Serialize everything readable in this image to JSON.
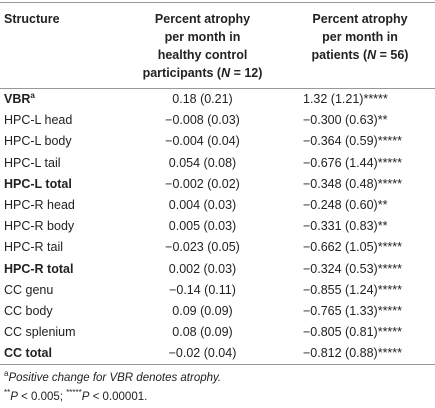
{
  "table": {
    "headers": [
      [
        [
          "Structure"
        ]
      ],
      [
        [
          "Percent atrophy"
        ],
        [
          "per month in"
        ],
        [
          "healthy control"
        ],
        [
          "participants (",
          {
            "text": "N",
            "style": "i"
          },
          " = 12)"
        ]
      ],
      [
        [
          "Percent atrophy"
        ],
        [
          "per month in"
        ],
        [
          "patients (",
          {
            "text": "N",
            "style": "i"
          },
          " = 56)"
        ]
      ]
    ],
    "rows": [
      {
        "cells": [
          [
            "VBR",
            {
              "text": "a",
              "style": "sup"
            }
          ],
          [
            "0.18 (0.21)"
          ],
          [
            "1.32 (1.21)*****"
          ]
        ],
        "bold": true
      },
      {
        "cells": [
          [
            "HPC-L head"
          ],
          [
            "−0.008 (0.03)"
          ],
          [
            "−0.300 (0.63)**"
          ]
        ]
      },
      {
        "cells": [
          [
            "HPC-L body"
          ],
          [
            "−0.004 (0.04)"
          ],
          [
            "−0.364 (0.59)*****"
          ]
        ]
      },
      {
        "cells": [
          [
            "HPC-L tail"
          ],
          [
            "0.054 (0.08)"
          ],
          [
            "−0.676 (1.44)*****"
          ]
        ]
      },
      {
        "cells": [
          [
            "HPC-L total"
          ],
          [
            "−0.002 (0.02)"
          ],
          [
            "−0.348 (0.48)*****"
          ]
        ],
        "bold": true
      },
      {
        "cells": [
          [
            "HPC-R head"
          ],
          [
            "0.004 (0.03)"
          ],
          [
            "−0.248 (0.60)**"
          ]
        ]
      },
      {
        "cells": [
          [
            "HPC-R body"
          ],
          [
            "0.005 (0.03)"
          ],
          [
            "−0.331 (0.83)**"
          ]
        ]
      },
      {
        "cells": [
          [
            "HPC-R tail"
          ],
          [
            "−0.023 (0.05)"
          ],
          [
            "−0.662 (1.05)*****"
          ]
        ]
      },
      {
        "cells": [
          [
            "HPC-R total"
          ],
          [
            "0.002 (0.03)"
          ],
          [
            "−0.324 (0.53)*****"
          ]
        ],
        "bold": true
      },
      {
        "cells": [
          [
            "CC genu"
          ],
          [
            "−0.14 (0.11)"
          ],
          [
            "−0.855 (1.24)*****"
          ]
        ]
      },
      {
        "cells": [
          [
            "CC body"
          ],
          [
            "0.09 (0.09)"
          ],
          [
            "−0.765 (1.33)*****"
          ]
        ]
      },
      {
        "cells": [
          [
            "CC splenium"
          ],
          [
            "0.08 (0.09)"
          ],
          [
            "−0.805 (0.81)*****"
          ]
        ]
      },
      {
        "cells": [
          [
            "CC total"
          ],
          [
            "−0.02 (0.04)"
          ],
          [
            "−0.812 (0.88)*****"
          ]
        ],
        "bold": true
      }
    ]
  },
  "footnotes": [
    [
      {
        "text": "a",
        "style": "sup"
      },
      {
        "text": "Positive change for VBR denotes atrophy.",
        "style": "i"
      }
    ],
    [
      {
        "text": "**",
        "style": "sup"
      },
      {
        "text": "P",
        "style": "i"
      },
      " < 0.005; ",
      {
        "text": "*****",
        "style": "sup"
      },
      {
        "text": "P",
        "style": "i"
      },
      " < 0.00001."
    ]
  ]
}
